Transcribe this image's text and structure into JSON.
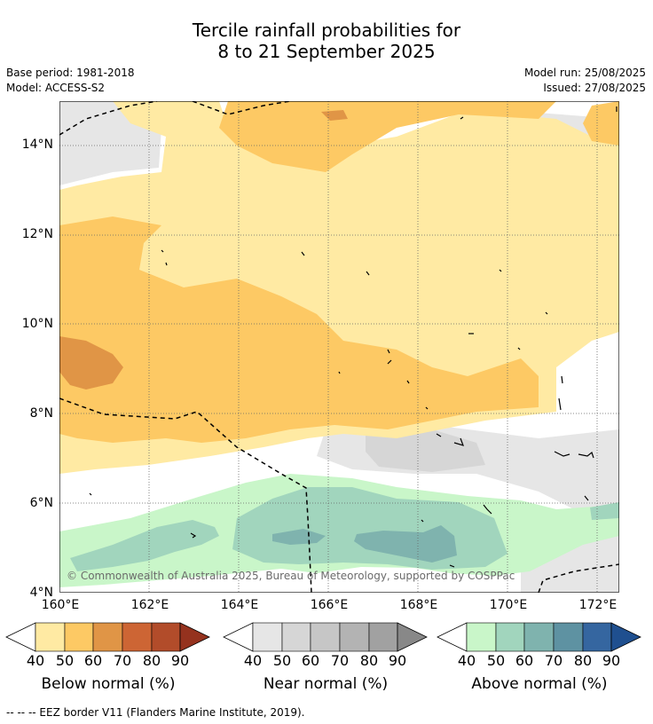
{
  "title": {
    "line1": "Tercile rainfall probabilities for",
    "line2": "8 to 21 September 2025"
  },
  "meta": {
    "base_period": "Base period: 1981-2018",
    "model": "Model: ACCESS-S2",
    "model_run": "Model run: 25/08/2025",
    "issued": "Issued: 27/08/2025"
  },
  "map": {
    "lat_ticks": [
      "14°N",
      "12°N",
      "10°N",
      "8°N",
      "6°N",
      "4°N"
    ],
    "lon_ticks": [
      "160°E",
      "162°E",
      "164°E",
      "166°E",
      "168°E",
      "170°E",
      "172°E"
    ],
    "copyright": "© Commonwealth of Australia 2025, Bureau of Meteorology, supported by COSPPac"
  },
  "colorbars": [
    {
      "title": "Below normal (%)",
      "labels": [
        "40",
        "50",
        "60",
        "70",
        "80",
        "90"
      ],
      "colors": [
        "#ffeaa3",
        "#fdc964",
        "#e09546",
        "#cd6534",
        "#b24c2a",
        "#95321e"
      ]
    },
    {
      "title": "Near normal (%)",
      "labels": [
        "40",
        "50",
        "60",
        "70",
        "80",
        "90"
      ],
      "colors": [
        "#e6e6e6",
        "#d6d6d6",
        "#c6c6c6",
        "#b3b3b3",
        "#a1a1a1",
        "#888888"
      ]
    },
    {
      "title": "Above normal (%)",
      "labels": [
        "40",
        "50",
        "60",
        "70",
        "80",
        "90"
      ],
      "colors": [
        "#c9f6c9",
        "#a1d5bd",
        "#7fb3ae",
        "#5e92a2",
        "#3566a0",
        "#1f4f8f"
      ]
    }
  ],
  "legend_note": "-- -- -- EEZ border V11 (Flanders Marine Institute, 2019)."
}
